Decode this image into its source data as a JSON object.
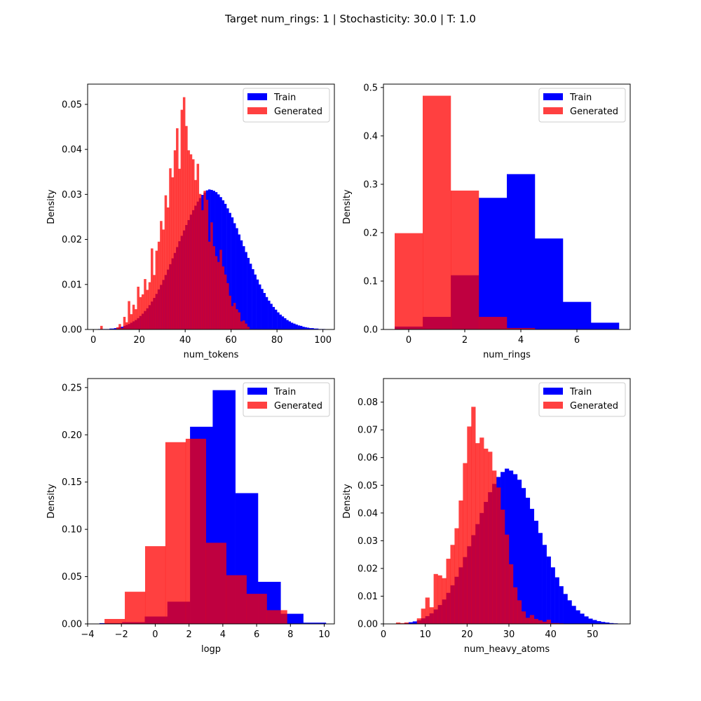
{
  "figure": {
    "title": "Target num_rings: 1 | Stochasticity: 30.0 | T: 1.0"
  },
  "colors": {
    "train": "#0000ff",
    "generated": "#ff0000",
    "generated_alpha": 0.75
  },
  "chart_data": [
    {
      "type": "bar",
      "xlabel": "num_tokens",
      "ylabel": "Density",
      "xlim": [
        -2.5,
        105
      ],
      "ylim": [
        0,
        0.0545
      ],
      "xticks": [
        0,
        20,
        40,
        60,
        80,
        100
      ],
      "yticks": [
        0.0,
        0.01,
        0.02,
        0.03,
        0.04,
        0.05
      ],
      "ytick_labels": [
        "0.00",
        "0.01",
        "0.02",
        "0.03",
        "0.04",
        "0.05"
      ],
      "legend": {
        "placement": "top-right",
        "entries": [
          "Train",
          "Generated"
        ]
      },
      "series": [
        {
          "name": "Train",
          "color": "#0000ff",
          "bin_start": 2,
          "bin_width": 1,
          "values": [
            0.0001,
            0.0001,
            0.0001,
            0.0001,
            0.0001,
            0.0002,
            0.0002,
            0.0003,
            0.0003,
            0.0005,
            0.0006,
            0.0008,
            0.001,
            0.0012,
            0.0015,
            0.0018,
            0.0021,
            0.0025,
            0.003,
            0.0035,
            0.0041,
            0.0047,
            0.0054,
            0.0062,
            0.007,
            0.0079,
            0.0089,
            0.0099,
            0.011,
            0.0121,
            0.0133,
            0.0145,
            0.0158,
            0.017,
            0.0183,
            0.0196,
            0.0208,
            0.022,
            0.0232,
            0.0243,
            0.0255,
            0.0265,
            0.0275,
            0.0284,
            0.0292,
            0.0299,
            0.0304,
            0.0309,
            0.0311,
            0.031,
            0.0308,
            0.0305,
            0.03,
            0.0294,
            0.0287,
            0.0279,
            0.0269,
            0.0259,
            0.0249,
            0.0236,
            0.0225,
            0.0211,
            0.0198,
            0.0185,
            0.0172,
            0.0159,
            0.0146,
            0.0134,
            0.0122,
            0.0111,
            0.01,
            0.009,
            0.0081,
            0.0072,
            0.0064,
            0.0057,
            0.005,
            0.0044,
            0.0038,
            0.0033,
            0.0029,
            0.0025,
            0.0021,
            0.0018,
            0.0015,
            0.0013,
            0.0011,
            0.0009,
            0.0008,
            0.0006,
            0.0005,
            0.0004,
            0.0003,
            0.0003,
            0.0002,
            0.0002,
            0.0001,
            0.0001,
            0.0001
          ]
        },
        {
          "name": "Generated",
          "color": "#ff0000",
          "bin_start": 2,
          "bin_width": 1,
          "values": [
            0,
            0.0008,
            0,
            0,
            0,
            0,
            0,
            0,
            0.0005,
            0.0012,
            0.0003,
            0.0028,
            0.0016,
            0.0063,
            0.0034,
            0.0055,
            0.0045,
            0.0095,
            0.0072,
            0.0078,
            0.0112,
            0.0088,
            0.0105,
            0.018,
            0.0121,
            0.0175,
            0.0195,
            0.0241,
            0.0222,
            0.0298,
            0.0271,
            0.0358,
            0.0338,
            0.0398,
            0.0447,
            0.0357,
            0.0488,
            0.0516,
            0.0452,
            0.0398,
            0.0389,
            0.0378,
            0.0332,
            0.0368,
            0.0301,
            0.0265,
            0.0308,
            0.0288,
            0.0195,
            0.0238,
            0.0185,
            0.0163,
            0.015,
            0.0177,
            0.014,
            0.0122,
            0.0103,
            0.0075,
            0.0052,
            0.0059,
            0.0045,
            0.0038,
            0.0018,
            0.002,
            0.0013,
            0.0006,
            0,
            0,
            0,
            0,
            0,
            0,
            0,
            0,
            0,
            0,
            0,
            0,
            0,
            0,
            0,
            0,
            0,
            0,
            0,
            0,
            0,
            0,
            0,
            0,
            0,
            0,
            0,
            0,
            0,
            0,
            0,
            0,
            0,
            0
          ]
        }
      ]
    },
    {
      "type": "bar",
      "xlabel": "num_rings",
      "ylabel": "Density",
      "xlim": [
        -0.9,
        7.9
      ],
      "ylim": [
        0,
        0.507
      ],
      "xticks": [
        0,
        2,
        4,
        6
      ],
      "yticks": [
        0.0,
        0.1,
        0.2,
        0.3,
        0.4,
        0.5
      ],
      "ytick_labels": [
        "0.0",
        "0.1",
        "0.2",
        "0.3",
        "0.4",
        "0.5"
      ],
      "legend": {
        "placement": "top-right",
        "entries": [
          "Train",
          "Generated"
        ]
      },
      "series": [
        {
          "name": "Train",
          "color": "#0000ff",
          "bin_start": -0.5,
          "bin_width": 1,
          "values": [
            0.006,
            0.026,
            0.112,
            0.272,
            0.321,
            0.188,
            0.057,
            0.014
          ]
        },
        {
          "name": "Generated",
          "color": "#ff0000",
          "bin_start": -0.5,
          "bin_width": 1,
          "values": [
            0.199,
            0.483,
            0.287,
            0.026,
            0.003,
            0.0,
            0.0,
            0.0
          ]
        }
      ]
    },
    {
      "type": "bar",
      "xlabel": "logp",
      "ylabel": "Density",
      "xlim": [
        -4,
        10.6
      ],
      "ylim": [
        0,
        0.2595
      ],
      "xticks": [
        -4,
        -2,
        0,
        2,
        4,
        6,
        8,
        10
      ],
      "yticks": [
        0.0,
        0.05,
        0.1,
        0.15,
        0.2,
        0.25
      ],
      "ytick_labels": [
        "0.00",
        "0.05",
        "0.10",
        "0.15",
        "0.20",
        "0.25"
      ],
      "legend": {
        "placement": "top-right",
        "entries": [
          "Train",
          "Generated"
        ]
      },
      "series": [
        {
          "name": "Train",
          "color": "#0000ff",
          "edges": [
            -3.3,
            -1.96,
            -0.62,
            0.72,
            2.06,
            3.4,
            4.74,
            6.08,
            7.42,
            8.76,
            10.1
          ],
          "values": [
            0.0008,
            0.0018,
            0.0078,
            0.0235,
            0.2085,
            0.2472,
            0.1383,
            0.0445,
            0.0107,
            0.0013
          ]
        },
        {
          "name": "Generated",
          "color": "#ff0000",
          "edges": [
            -3.0,
            -1.8,
            -0.6,
            0.6,
            1.8,
            3.0,
            4.2,
            5.4,
            6.6,
            7.8
          ],
          "values": [
            0.0052,
            0.034,
            0.0822,
            0.1922,
            0.1958,
            0.0858,
            0.0515,
            0.0318,
            0.0145
          ]
        }
      ]
    },
    {
      "type": "bar",
      "xlabel": "num_heavy_atoms",
      "ylabel": "Density",
      "xlim": [
        0,
        59
      ],
      "ylim": [
        0,
        0.0885
      ],
      "xticks": [
        0,
        10,
        20,
        30,
        40,
        50
      ],
      "yticks": [
        0.0,
        0.01,
        0.02,
        0.03,
        0.04,
        0.05,
        0.06,
        0.07,
        0.08
      ],
      "ytick_labels": [
        "0.00",
        "0.01",
        "0.02",
        "0.03",
        "0.04",
        "0.05",
        "0.06",
        "0.07",
        "0.08"
      ],
      "legend": {
        "placement": "top-right",
        "entries": [
          "Train",
          "Generated"
        ]
      },
      "series": [
        {
          "name": "Train",
          "color": "#0000ff",
          "bin_start": 5,
          "bin_width": 1,
          "values": [
            0.0003,
            0.0006,
            0.0009,
            0.0013,
            0.002,
            0.0028,
            0.0038,
            0.0052,
            0.0068,
            0.0088,
            0.0112,
            0.0139,
            0.017,
            0.0204,
            0.0241,
            0.028,
            0.032,
            0.036,
            0.04,
            0.044,
            0.0475,
            0.0505,
            0.053,
            0.0548,
            0.056,
            0.0553,
            0.054,
            0.052,
            0.049,
            0.0455,
            0.0415,
            0.0372,
            0.0328,
            0.0285,
            0.0243,
            0.0204,
            0.0168,
            0.0136,
            0.0108,
            0.0085,
            0.0065,
            0.0049,
            0.0037,
            0.0027,
            0.0019,
            0.0014,
            0.001,
            0.0007,
            0.0005,
            0.0003,
            0.0002,
            0.0001
          ]
        },
        {
          "name": "Generated",
          "color": "#ff0000",
          "bin_start": 2,
          "bin_width": 1,
          "values": [
            0,
            0.0005,
            0.0003,
            0.0005,
            0,
            0,
            0.002,
            0.0055,
            0.0095,
            0.006,
            0.018,
            0.0175,
            0.0165,
            0.0235,
            0.0285,
            0.0345,
            0.0445,
            0.058,
            0.0712,
            0.0783,
            0.0652,
            0.0672,
            0.0632,
            0.0621,
            0.0553,
            0.0492,
            0.0412,
            0.0322,
            0.0215,
            0.0132,
            0.0085,
            0.0045,
            0.0022,
            0.0032,
            0.0018,
            0.0013,
            0.0008,
            0.0015,
            0.0003,
            0.0003,
            0.0002,
            0,
            0,
            0,
            0,
            0,
            0,
            0,
            0,
            0,
            0,
            0,
            0,
            0,
            0
          ]
        }
      ]
    }
  ]
}
